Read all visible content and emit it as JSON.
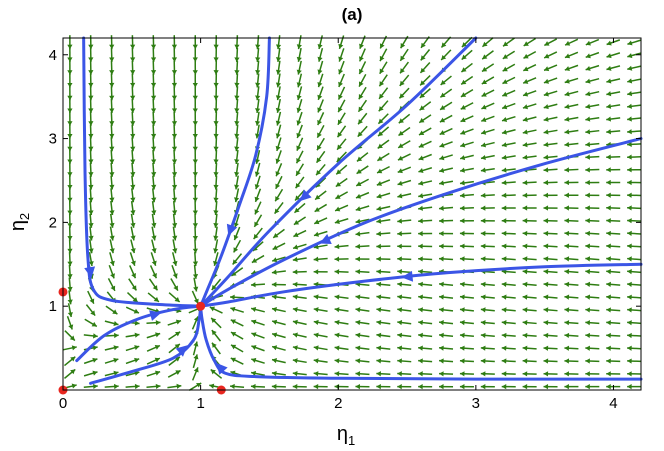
{
  "chart_data": {
    "type": "vector-field",
    "title": "(a)",
    "xlabel": {
      "base": "η",
      "sub": "1"
    },
    "ylabel": {
      "base": "η",
      "sub": "2"
    },
    "xlim": [
      0,
      4.2
    ],
    "ylim": [
      0,
      4.2
    ],
    "xticks": [
      0,
      1,
      2,
      3,
      4
    ],
    "yticks": [
      1,
      2,
      3,
      4
    ],
    "grid": false,
    "colors": {
      "field": "#2e7d12",
      "trajectory": "#3b55e6",
      "fixed_point": "#e8261f"
    },
    "fixed_points": [
      {
        "x": 0,
        "y": 0
      },
      {
        "x": 0,
        "y": 1.17
      },
      {
        "x": 1.15,
        "y": 0
      },
      {
        "x": 1,
        "y": 1
      }
    ],
    "trajectories": [
      {
        "points": [
          [
            0.15,
            4.2
          ],
          [
            0.16,
            2.6
          ],
          [
            0.18,
            1.6
          ],
          [
            0.22,
            1.2
          ],
          [
            0.35,
            1.07
          ],
          [
            0.7,
            1.02
          ],
          [
            1,
            1
          ]
        ],
        "arrow_at": 2
      },
      {
        "points": [
          [
            1.5,
            4.2
          ],
          [
            1.48,
            3.5
          ],
          [
            1.4,
            2.8
          ],
          [
            1.28,
            2.2
          ],
          [
            1.15,
            1.6
          ],
          [
            1.05,
            1.2
          ],
          [
            1,
            1
          ]
        ],
        "arrow_at": 3
      },
      {
        "points": [
          [
            3.0,
            4.2
          ],
          [
            2.5,
            3.4
          ],
          [
            2.0,
            2.7
          ],
          [
            1.5,
            1.9
          ],
          [
            1.2,
            1.35
          ],
          [
            1,
            1
          ]
        ],
        "arrow_at": 2
      },
      {
        "points": [
          [
            4.2,
            3.0
          ],
          [
            3.5,
            2.7
          ],
          [
            2.8,
            2.35
          ],
          [
            2.2,
            2.0
          ],
          [
            1.6,
            1.55
          ],
          [
            1.2,
            1.2
          ],
          [
            1,
            1
          ]
        ],
        "arrow_at": 3
      },
      {
        "points": [
          [
            4.2,
            1.5
          ],
          [
            3.5,
            1.47
          ],
          [
            2.8,
            1.4
          ],
          [
            2.2,
            1.3
          ],
          [
            1.6,
            1.17
          ],
          [
            1.2,
            1.05
          ],
          [
            1,
            1
          ]
        ],
        "arrow_at": 2
      },
      {
        "points": [
          [
            4.2,
            0.13
          ],
          [
            3.0,
            0.13
          ],
          [
            2.0,
            0.14
          ],
          [
            1.4,
            0.16
          ],
          [
            1.18,
            0.2
          ],
          [
            1.1,
            0.35
          ],
          [
            1.04,
            0.6
          ],
          [
            1.01,
            0.85
          ],
          [
            1,
            1
          ]
        ],
        "arrow_at": 4
      },
      {
        "points": [
          [
            0.2,
            0.08
          ],
          [
            0.5,
            0.22
          ],
          [
            0.8,
            0.38
          ],
          [
            0.95,
            0.6
          ],
          [
            0.99,
            0.85
          ],
          [
            1,
            1
          ]
        ],
        "arrow_at": 2
      },
      {
        "points": [
          [
            0.1,
            0.35
          ],
          [
            0.3,
            0.65
          ],
          [
            0.55,
            0.85
          ],
          [
            0.8,
            0.96
          ],
          [
            1,
            1
          ]
        ],
        "arrow_at": 2
      }
    ]
  }
}
